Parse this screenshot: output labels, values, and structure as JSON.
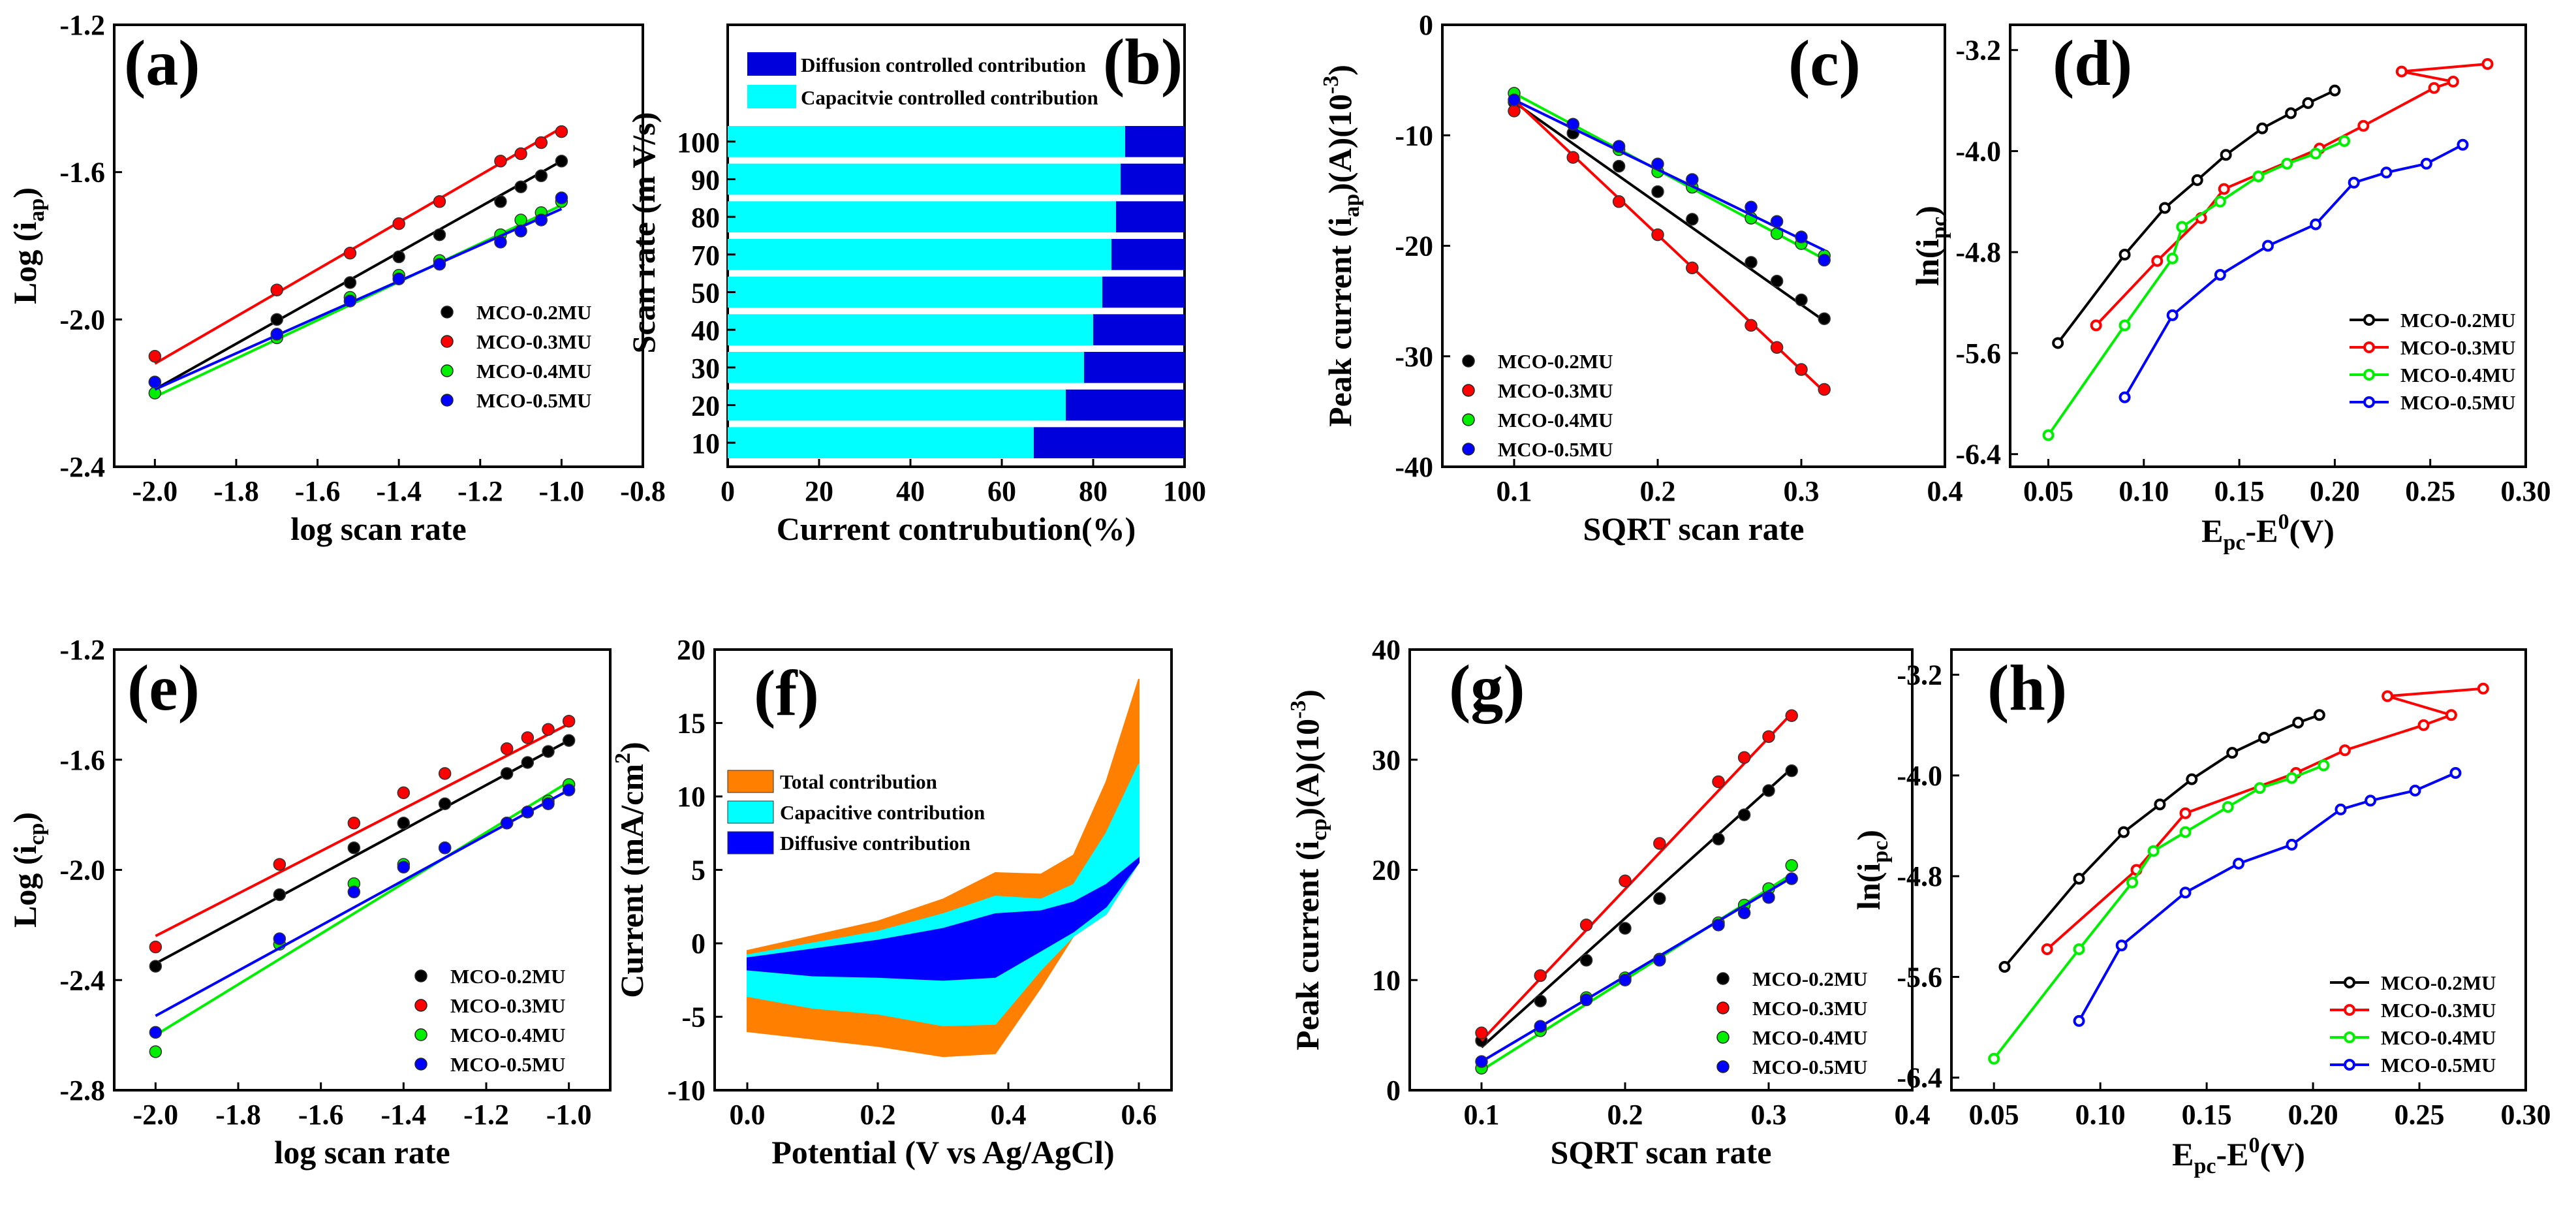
{
  "colors": {
    "black": "#000000",
    "red": "#ff0000",
    "green": "#00ee00",
    "blue": "#0000ff",
    "cyan": "#00ffff",
    "navy": "#0000dd",
    "orange": "#ff7f00"
  },
  "series_names": [
    "MCO-0.2MU",
    "MCO-0.3MU",
    "MCO-0.4MU",
    "MCO-0.5MU"
  ],
  "chart_data": [
    {
      "id": "a",
      "label": "(a)",
      "type": "scatter",
      "xlabel": "log scan rate",
      "ylabel": "Log (i_ap)",
      "ylabel_main": "Log (i",
      "ylabel_sub": "ap",
      "ylabel_end": ")",
      "xlim": [
        -2.1,
        -0.8
      ],
      "ylim": [
        -2.4,
        -1.2
      ],
      "xticks": [
        -2.0,
        -1.8,
        -1.6,
        -1.4,
        -1.2,
        -1.0,
        -0.8
      ],
      "yticks": [
        -2.4,
        -2.0,
        -1.6,
        -1.2
      ],
      "xtick_labels": [
        "-2.0",
        "-1.8",
        "-1.6",
        "-1.4",
        "-1.2",
        "-1.0",
        "-0.8"
      ],
      "ytick_labels": [
        "-2.4",
        "-2.0",
        "-1.6",
        "-1.2"
      ],
      "x": [
        -2.0,
        -1.7,
        -1.52,
        -1.4,
        -1.3,
        -1.15,
        -1.1,
        -1.05,
        -1.0
      ],
      "series": [
        {
          "name": "MCO-0.2MU",
          "values": [
            -2.17,
            -2.0,
            -1.9,
            -1.83,
            -1.77,
            -1.68,
            -1.64,
            -1.61,
            -1.57
          ],
          "fit": [
            -2.19,
            -1.57
          ]
        },
        {
          "name": "MCO-0.3MU",
          "values": [
            -2.1,
            -1.92,
            -1.82,
            -1.74,
            -1.68,
            -1.57,
            -1.55,
            -1.52,
            -1.49
          ],
          "fit": [
            -2.12,
            -1.48
          ]
        },
        {
          "name": "MCO-0.4MU",
          "values": [
            -2.2,
            -2.05,
            -1.94,
            -1.88,
            -1.84,
            -1.77,
            -1.73,
            -1.71,
            -1.68
          ],
          "fit": [
            -2.21,
            -1.69
          ]
        },
        {
          "name": "MCO-0.5MU",
          "values": [
            -2.17,
            -2.04,
            -1.95,
            -1.89,
            -1.85,
            -1.79,
            -1.76,
            -1.73,
            -1.67
          ],
          "fit": [
            -2.19,
            -1.7
          ]
        }
      ],
      "legend": "bottom-right"
    },
    {
      "id": "b",
      "label": "(b)",
      "type": "bar",
      "xlabel": "Current contrubution(%)",
      "ylabel": "Scan rate (m V/s)",
      "xlim": [
        0,
        100
      ],
      "xticks": [
        0,
        20,
        40,
        60,
        80,
        100
      ],
      "xtick_labels": [
        "0",
        "20",
        "40",
        "60",
        "80",
        "100"
      ],
      "categories": [
        "10",
        "20",
        "30",
        "40",
        "50",
        "70",
        "80",
        "90",
        "100"
      ],
      "series": [
        {
          "name": "Capacitvie controlled contribution",
          "values": [
            67,
            74,
            78,
            80,
            82,
            84,
            85,
            86,
            87
          ]
        },
        {
          "name": "Diffusion controlled contribution",
          "values": [
            33,
            26,
            22,
            20,
            18,
            16,
            15,
            14,
            13
          ]
        }
      ],
      "legend": "top"
    },
    {
      "id": "c",
      "label": "(c)",
      "type": "scatter",
      "xlabel": "SQRT scan rate",
      "ylabel": "Peak current (i_ap)(A)(10^-3)",
      "ylabel_main": "Peak current (i",
      "ylabel_sub": "ap",
      "ylabel_end": ")(A)(10",
      "ylabel_sup": "-3",
      "ylabel_close": ")",
      "xlim": [
        0.05,
        0.4
      ],
      "ylim": [
        -40,
        0
      ],
      "xticks": [
        0.1,
        0.2,
        0.3,
        0.4
      ],
      "yticks": [
        -40,
        -30,
        -20,
        -10,
        0
      ],
      "xtick_labels": [
        "0.1",
        "0.2",
        "0.3",
        "0.4"
      ],
      "ytick_labels": [
        "-40",
        "-30",
        "-20",
        "-10",
        "0"
      ],
      "x": [
        0.1,
        0.141,
        0.173,
        0.2,
        0.224,
        0.265,
        0.283,
        0.3,
        0.316
      ],
      "series": [
        {
          "name": "MCO-0.2MU",
          "values": [
            -7.0,
            -9.8,
            -12.8,
            -15.1,
            -17.6,
            -21.5,
            -23.2,
            -24.9,
            -26.6
          ],
          "fit": [
            -7.0,
            -26.8
          ]
        },
        {
          "name": "MCO-0.3MU",
          "values": [
            -7.8,
            -12.0,
            -16.0,
            -19.0,
            -22.0,
            -27.2,
            -29.2,
            -31.2,
            -33.0
          ],
          "fit": [
            -6.8,
            -33.2
          ]
        },
        {
          "name": "MCO-0.4MU",
          "values": [
            -6.2,
            -9.0,
            -11.3,
            -13.3,
            -14.7,
            -17.5,
            -18.9,
            -19.8,
            -20.9
          ],
          "fit": [
            -6.2,
            -21.2
          ]
        },
        {
          "name": "MCO-0.5MU",
          "values": [
            -6.8,
            -9.0,
            -11.0,
            -12.6,
            -14.0,
            -16.5,
            -17.8,
            -19.2,
            -21.3
          ],
          "fit": [
            -6.8,
            -20.4
          ]
        }
      ],
      "legend": "bottom-left"
    },
    {
      "id": "d",
      "label": "(d)",
      "type": "line",
      "xlabel": "Epc-E0(V)",
      "xlabel_main": "E",
      "xlabel_sub": "pc",
      "xlabel_mid": "-E",
      "xlabel_sup": "0",
      "xlabel_end": "(V)",
      "ylabel": "ln(i_pc)",
      "ylabel_main": "ln(i",
      "ylabel_sub": "pc",
      "ylabel_end": ")",
      "xlim": [
        0.03,
        0.3
      ],
      "ylim": [
        -6.5,
        -3.0
      ],
      "xticks": [
        0.05,
        0.1,
        0.15,
        0.2,
        0.25,
        0.3
      ],
      "yticks": [
        -6.4,
        -5.6,
        -4.8,
        -4.0,
        -3.2
      ],
      "xtick_labels": [
        "0.05",
        "0.10",
        "0.15",
        "0.20",
        "0.25",
        "0.30"
      ],
      "ytick_labels": [
        "-6.4",
        "-5.6",
        "-4.8",
        "-4.0",
        "-3.2"
      ],
      "series": [
        {
          "name": "MCO-0.2MU",
          "x": [
            0.055,
            0.09,
            0.111,
            0.128,
            0.143,
            0.162,
            0.177,
            0.186,
            0.2
          ],
          "values": [
            -5.52,
            -4.82,
            -4.45,
            -4.23,
            -4.03,
            -3.82,
            -3.7,
            -3.62,
            -3.52
          ]
        },
        {
          "name": "MCO-0.3MU",
          "x": [
            0.075,
            0.107,
            0.13,
            0.142,
            0.192,
            0.215,
            0.252,
            0.262,
            0.235,
            0.28
          ],
          "values": [
            -5.38,
            -4.87,
            -4.53,
            -4.3,
            -3.98,
            -3.8,
            -3.5,
            -3.45,
            -3.37,
            -3.31
          ]
        },
        {
          "name": "MCO-0.4MU",
          "x": [
            0.05,
            0.09,
            0.115,
            0.12,
            0.14,
            0.16,
            0.175,
            0.19,
            0.205
          ],
          "values": [
            -6.25,
            -5.38,
            -4.85,
            -4.6,
            -4.4,
            -4.2,
            -4.1,
            -4.02,
            -3.92
          ]
        },
        {
          "name": "MCO-0.5MU",
          "x": [
            0.09,
            0.115,
            0.14,
            0.165,
            0.19,
            0.21,
            0.227,
            0.248,
            0.267
          ],
          "values": [
            -5.95,
            -5.3,
            -4.98,
            -4.75,
            -4.58,
            -4.25,
            -4.17,
            -4.1,
            -3.95
          ]
        }
      ],
      "legend": "bottom-right"
    },
    {
      "id": "e",
      "label": "(e)",
      "type": "scatter",
      "xlabel": "log scan rate",
      "ylabel": "Log (i_cp)",
      "ylabel_main": "Log (i",
      "ylabel_sub": "cp",
      "ylabel_end": ")",
      "xlim": [
        -2.1,
        -0.9
      ],
      "ylim": [
        -2.8,
        -1.2
      ],
      "xticks": [
        -2.0,
        -1.8,
        -1.6,
        -1.4,
        -1.2,
        -1.0
      ],
      "yticks": [
        -2.8,
        -2.4,
        -2.0,
        -1.6,
        -1.2
      ],
      "xtick_labels": [
        "-2.0",
        "-1.8",
        "-1.6",
        "-1.4",
        "-1.2",
        "-1.0"
      ],
      "ytick_labels": [
        "-2.8",
        "-2.4",
        "-2.0",
        "-1.6",
        "-1.2"
      ],
      "x": [
        -2.0,
        -1.7,
        -1.52,
        -1.4,
        -1.3,
        -1.15,
        -1.1,
        -1.05,
        -1.0
      ],
      "series": [
        {
          "name": "MCO-0.2MU",
          "values": [
            -2.35,
            -2.09,
            -1.92,
            -1.83,
            -1.76,
            -1.65,
            -1.61,
            -1.57,
            -1.53
          ],
          "fit": [
            -2.34,
            -1.53
          ]
        },
        {
          "name": "MCO-0.3MU",
          "values": [
            -2.28,
            -1.98,
            -1.83,
            -1.72,
            -1.65,
            -1.56,
            -1.52,
            -1.49,
            -1.46
          ],
          "fit": [
            -2.24,
            -1.47
          ]
        },
        {
          "name": "MCO-0.4MU",
          "values": [
            -2.66,
            -2.27,
            -2.05,
            -1.98,
            -1.92,
            -1.83,
            -1.79,
            -1.75,
            -1.69
          ],
          "fit": [
            -2.6,
            -1.68
          ]
        },
        {
          "name": "MCO-0.5MU",
          "values": [
            -2.59,
            -2.25,
            -2.08,
            -1.99,
            -1.92,
            -1.83,
            -1.79,
            -1.76,
            -1.71
          ],
          "fit": [
            -2.53,
            -1.71
          ]
        }
      ],
      "legend": "bottom-right"
    },
    {
      "id": "f",
      "label": "(f)",
      "type": "area",
      "xlabel": "Potential (V vs Ag/AgCl)",
      "ylabel": "Current (mA/cm^2)",
      "ylabel_main": "Current (mA/cm",
      "ylabel_sup": "2",
      "ylabel_end": ")",
      "xlim": [
        -0.05,
        0.65
      ],
      "ylim": [
        -10,
        20
      ],
      "xticks": [
        0.0,
        0.2,
        0.4,
        0.6
      ],
      "yticks": [
        -10,
        -5,
        0,
        5,
        10,
        15,
        20
      ],
      "xtick_labels": [
        "0.0",
        "0.2",
        "0.4",
        "0.6"
      ],
      "ytick_labels": [
        "-10",
        "-5",
        "0",
        "5",
        "10",
        "15",
        "20"
      ],
      "series": [
        {
          "name": "Total contribution",
          "x": [
            0.0,
            0.1,
            0.2,
            0.3,
            0.38,
            0.45,
            0.5,
            0.55,
            0.6
          ],
          "upper": [
            -0.5,
            0.5,
            1.5,
            3.0,
            4.8,
            4.7,
            6.0,
            11.0,
            18.0
          ],
          "lower": [
            -6.0,
            -6.5,
            -7.0,
            -7.7,
            -7.5,
            -3.0,
            0.5,
            2.0,
            5.5
          ]
        },
        {
          "name": "Capacitive contribution",
          "x": [
            0.0,
            0.1,
            0.2,
            0.3,
            0.38,
            0.45,
            0.5,
            0.55,
            0.6
          ],
          "upper": [
            -0.8,
            0.0,
            0.8,
            2.0,
            3.2,
            3.0,
            4.0,
            7.5,
            12.2
          ],
          "lower": [
            -3.6,
            -4.4,
            -4.8,
            -5.6,
            -5.5,
            -1.8,
            0.5,
            2.0,
            5.5
          ]
        },
        {
          "name": "Diffusive contribution",
          "x": [
            0.0,
            0.1,
            0.2,
            0.3,
            0.38,
            0.45,
            0.5,
            0.55,
            0.6
          ],
          "upper": [
            -1.0,
            -0.4,
            0.2,
            1.0,
            2.0,
            2.2,
            2.8,
            4.0,
            5.8
          ],
          "lower": [
            -1.8,
            -2.2,
            -2.3,
            -2.5,
            -2.3,
            -0.5,
            0.8,
            2.5,
            5.5
          ]
        }
      ],
      "legend": "top-left"
    },
    {
      "id": "g",
      "label": "(g)",
      "type": "scatter",
      "xlabel": "SQRT scan rate",
      "ylabel": "Peak current (i_cp)(A)(10^-3)",
      "ylabel_main": "Peak current (i",
      "ylabel_sub": "cp",
      "ylabel_end": ")(A)(10",
      "ylabel_sup": "-3",
      "ylabel_close": ")",
      "xlim": [
        0.05,
        0.4
      ],
      "ylim": [
        0,
        40
      ],
      "xticks": [
        0.1,
        0.2,
        0.3,
        0.4
      ],
      "yticks": [
        0,
        10,
        20,
        30,
        40
      ],
      "xtick_labels": [
        "0.1",
        "0.2",
        "0.3",
        "0.4"
      ],
      "ytick_labels": [
        "0",
        "10",
        "20",
        "30",
        "40"
      ],
      "x": [
        0.1,
        0.141,
        0.173,
        0.2,
        0.224,
        0.265,
        0.283,
        0.3,
        0.316
      ],
      "series": [
        {
          "name": "MCO-0.2MU",
          "values": [
            4.5,
            8.1,
            11.8,
            14.7,
            17.4,
            22.8,
            25.0,
            27.2,
            29.0
          ],
          "fit": [
            3.9,
            29.2
          ]
        },
        {
          "name": "MCO-0.3MU",
          "values": [
            5.2,
            10.4,
            15.0,
            19.0,
            22.4,
            28.0,
            30.2,
            32.1,
            34.0
          ],
          "fit": [
            4.5,
            34.2
          ]
        },
        {
          "name": "MCO-0.4MU",
          "values": [
            2.0,
            5.4,
            8.4,
            10.2,
            11.9,
            15.2,
            16.8,
            18.3,
            20.4
          ],
          "fit": [
            1.8,
            19.6
          ]
        },
        {
          "name": "MCO-0.5MU",
          "values": [
            2.6,
            5.8,
            8.2,
            10.0,
            11.8,
            15.0,
            16.1,
            17.5,
            19.2
          ],
          "fit": [
            2.6,
            19.3
          ]
        }
      ],
      "legend": "bottom-right"
    },
    {
      "id": "h",
      "label": "(h)",
      "type": "line",
      "xlabel": "Epc-E0(V)",
      "xlabel_main": "E",
      "xlabel_sub": "pc",
      "xlabel_mid": "-E",
      "xlabel_sup": "0",
      "xlabel_end": "(V)",
      "ylabel": "ln(i_pc)",
      "ylabel_main": "ln(i",
      "ylabel_sub": "pc",
      "ylabel_end": ")",
      "xlim": [
        0.03,
        0.3
      ],
      "ylim": [
        -6.5,
        -3.0
      ],
      "xticks": [
        0.05,
        0.1,
        0.15,
        0.2,
        0.25,
        0.3
      ],
      "yticks": [
        -6.4,
        -5.6,
        -4.8,
        -4.0,
        -3.2
      ],
      "xtick_labels": [
        "0.05",
        "0.10",
        "0.15",
        "0.20",
        "0.25",
        "0.30"
      ],
      "ytick_labels": [
        "-6.4",
        "-5.6",
        "-4.8",
        "-4.0",
        "-3.2"
      ],
      "series": [
        {
          "name": "MCO-0.2MU",
          "x": [
            0.055,
            0.09,
            0.111,
            0.128,
            0.143,
            0.162,
            0.177,
            0.193,
            0.203
          ],
          "values": [
            -5.52,
            -4.82,
            -4.45,
            -4.23,
            -4.03,
            -3.82,
            -3.7,
            -3.58,
            -3.52
          ]
        },
        {
          "name": "MCO-0.3MU",
          "x": [
            0.075,
            0.117,
            0.14,
            0.192,
            0.215,
            0.252,
            0.265,
            0.235,
            0.28
          ],
          "values": [
            -5.38,
            -4.75,
            -4.3,
            -3.98,
            -3.8,
            -3.6,
            -3.52,
            -3.37,
            -3.31
          ]
        },
        {
          "name": "MCO-0.4MU",
          "x": [
            0.05,
            0.09,
            0.115,
            0.125,
            0.14,
            0.16,
            0.175,
            0.19,
            0.205
          ],
          "values": [
            -6.25,
            -5.38,
            -4.85,
            -4.6,
            -4.45,
            -4.25,
            -4.1,
            -4.02,
            -3.92
          ]
        },
        {
          "name": "MCO-0.5MU",
          "x": [
            0.09,
            0.11,
            0.14,
            0.165,
            0.19,
            0.213,
            0.227,
            0.248,
            0.267
          ],
          "values": [
            -5.95,
            -5.35,
            -4.93,
            -4.7,
            -4.55,
            -4.27,
            -4.2,
            -4.12,
            -3.98
          ]
        }
      ],
      "legend": "bottom-left"
    }
  ]
}
